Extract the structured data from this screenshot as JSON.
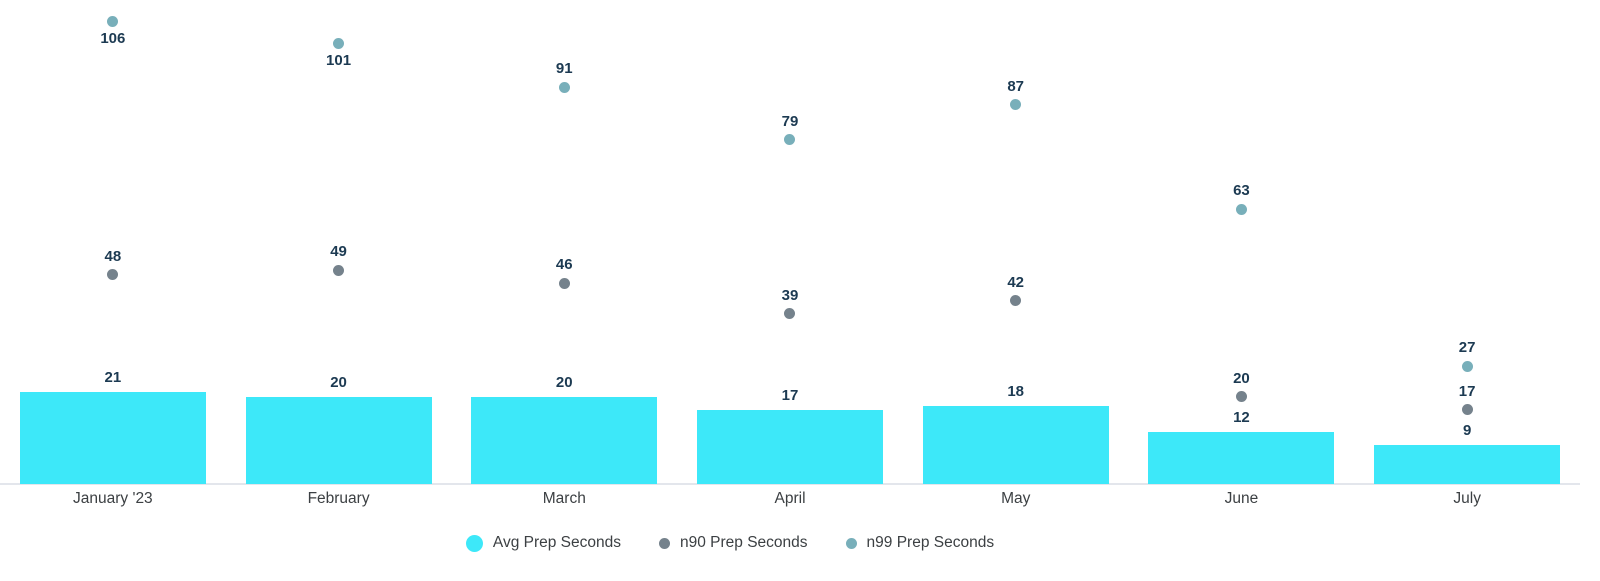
{
  "chart_data": {
    "type": "bar",
    "title": "",
    "xlabel": "",
    "ylabel": "",
    "categories": [
      "January '23",
      "February",
      "March",
      "April",
      "May",
      "June",
      "July"
    ],
    "series": [
      {
        "name": "Avg Prep Seconds",
        "mark": "bar",
        "color": "#3de8f9",
        "values": [
          21,
          20,
          20,
          17,
          18,
          12,
          9
        ]
      },
      {
        "name": "n90 Prep Seconds",
        "mark": "scatter",
        "color": "#75828c",
        "values": [
          48,
          49,
          46,
          39,
          42,
          20,
          17
        ]
      },
      {
        "name": "n99 Prep Seconds",
        "mark": "scatter",
        "color": "#78afba",
        "values": [
          106,
          101,
          91,
          79,
          87,
          63,
          27
        ],
        "label_below": [
          true,
          true,
          false,
          false,
          false,
          false,
          false
        ]
      }
    ],
    "ylim": [
      0,
      111
    ],
    "grid": false,
    "value_labels": true,
    "legend_position": "bottom"
  },
  "style": {
    "value_label_color": "#1c3a52",
    "axis_label_color": "#3c4043",
    "axis_line_color": "#e3e6ec",
    "background": "#ffffff"
  }
}
